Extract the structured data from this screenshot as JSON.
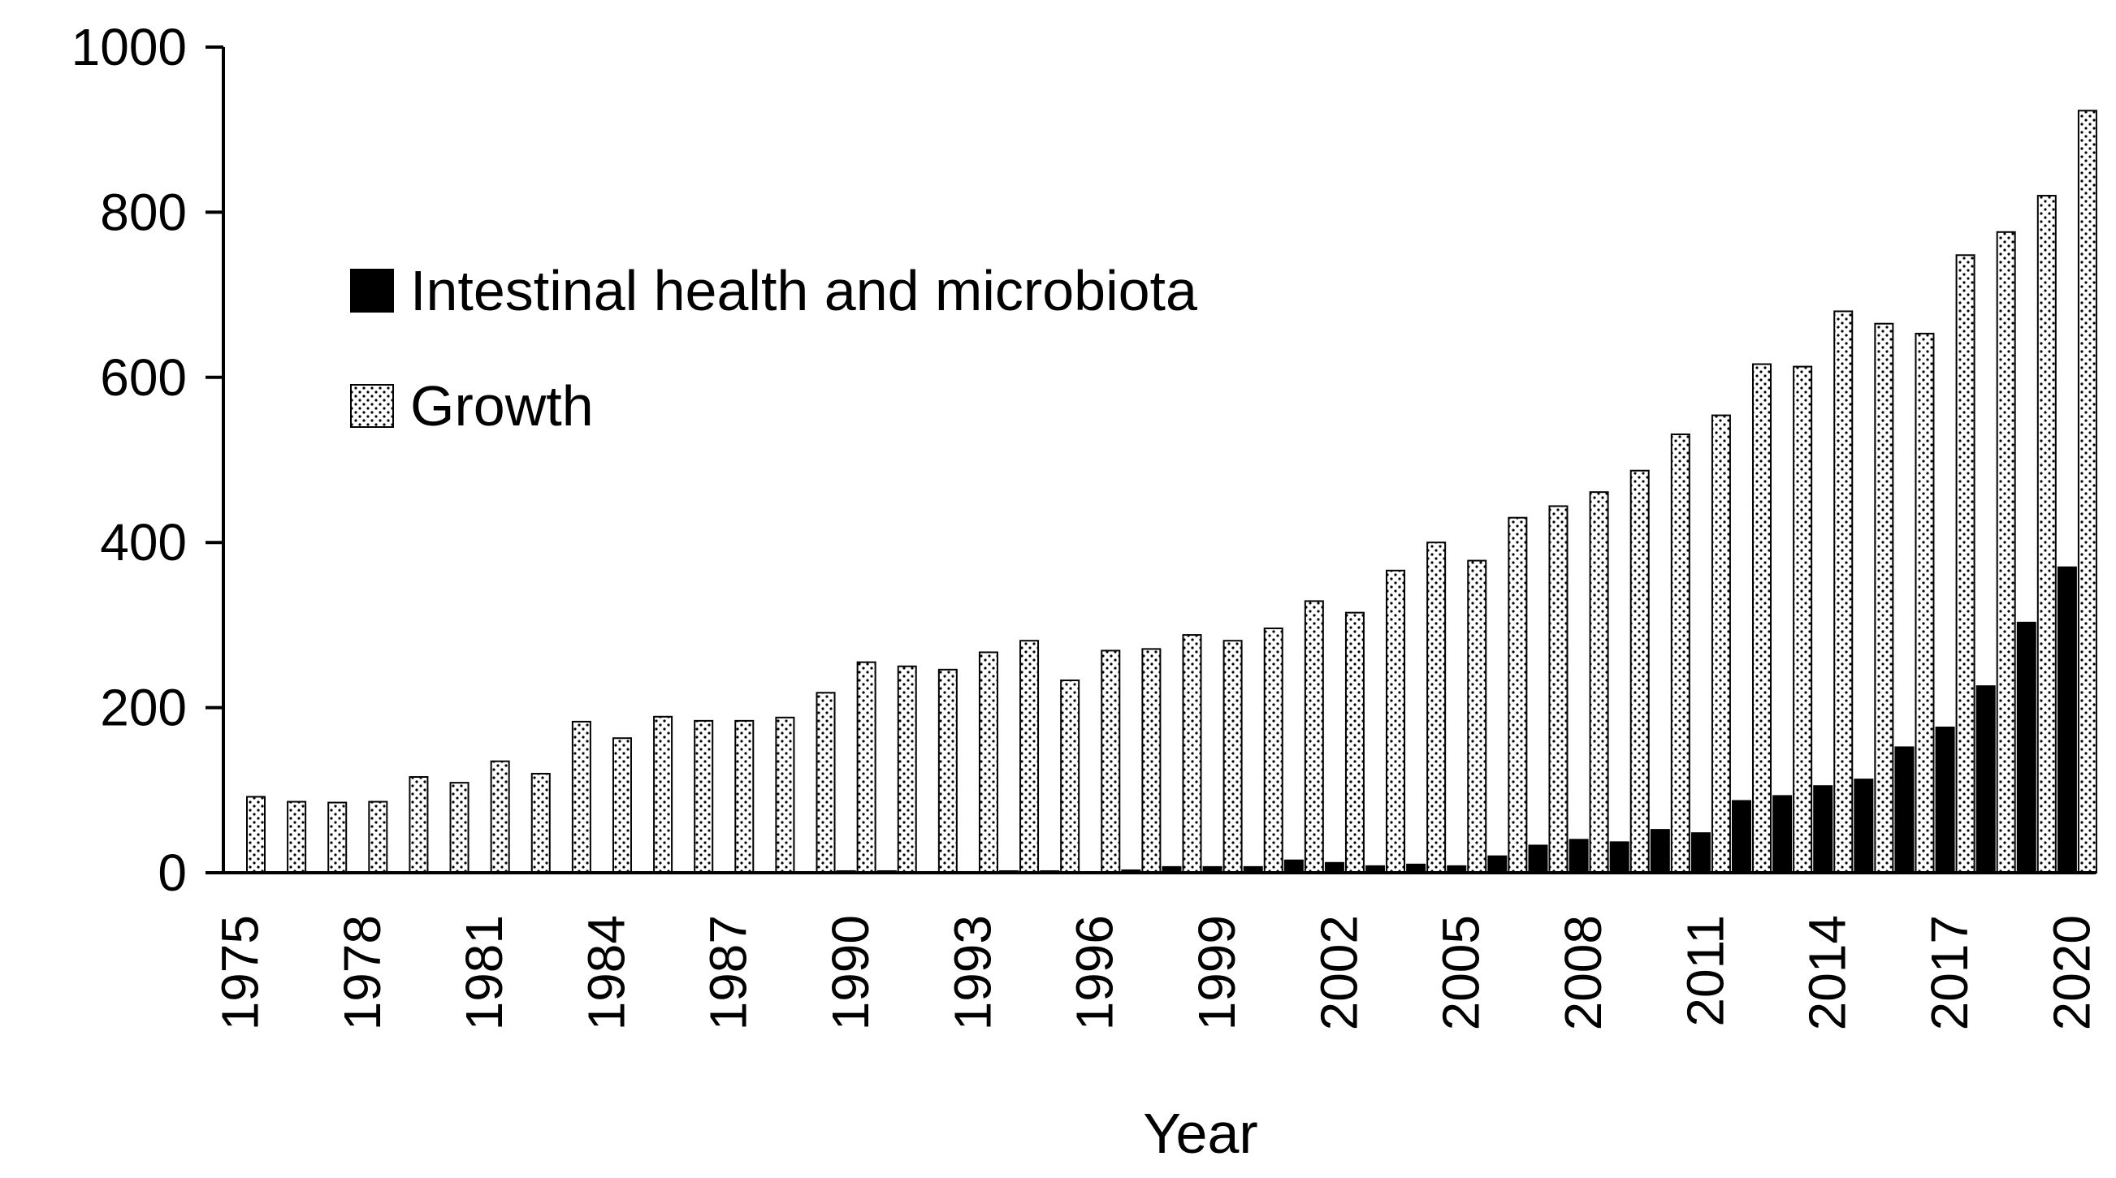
{
  "chart_data": {
    "type": "bar",
    "xlabel": "Year",
    "ylabel": "",
    "ylim": [
      0,
      1000
    ],
    "yticks": [
      0,
      200,
      400,
      600,
      800,
      1000
    ],
    "grid": false,
    "legend_position": "upper-left",
    "categories": [
      1975,
      1976,
      1977,
      1978,
      1979,
      1980,
      1981,
      1982,
      1983,
      1984,
      1985,
      1986,
      1987,
      1988,
      1989,
      1990,
      1991,
      1992,
      1993,
      1994,
      1995,
      1996,
      1997,
      1998,
      1999,
      2000,
      2001,
      2002,
      2003,
      2004,
      2005,
      2006,
      2007,
      2008,
      2009,
      2010,
      2011,
      2012,
      2013,
      2014,
      2015,
      2016,
      2017,
      2018,
      2019,
      2020
    ],
    "tick_labels": [
      "1975",
      "1978",
      "1981",
      "1984",
      "1987",
      "1990",
      "1993",
      "1996",
      "1999",
      "2002",
      "2005",
      "2008",
      "2011",
      "2014",
      "2017",
      "2020"
    ],
    "tick_label_positions": [
      1975,
      1978,
      1981,
      1984,
      1987,
      1990,
      1993,
      1996,
      1999,
      2002,
      2005,
      2008,
      2011,
      2014,
      2017,
      2020
    ],
    "series": [
      {
        "name": "Intestinal health and microbiota",
        "fill": "solid",
        "color": "#000000",
        "values": [
          0,
          0,
          1,
          0,
          0,
          0,
          0,
          0,
          1,
          0,
          0,
          1,
          0,
          0,
          1,
          2,
          2,
          1,
          1,
          2,
          2,
          1,
          3,
          7,
          7,
          7,
          15,
          12,
          8,
          10,
          8,
          20,
          33,
          40,
          37,
          52,
          48,
          87,
          93,
          105,
          113,
          152,
          176,
          226,
          303,
          370
        ]
      },
      {
        "name": "Growth",
        "fill": "dotted",
        "color": "#000000",
        "values": [
          92,
          86,
          85,
          86,
          116,
          109,
          135,
          120,
          183,
          163,
          189,
          184,
          184,
          188,
          218,
          255,
          250,
          246,
          267,
          281,
          233,
          269,
          271,
          288,
          281,
          296,
          329,
          315,
          366,
          400,
          378,
          430,
          444,
          461,
          487,
          531,
          554,
          616,
          613,
          680,
          665,
          653,
          748,
          776,
          820,
          923
        ]
      }
    ]
  }
}
